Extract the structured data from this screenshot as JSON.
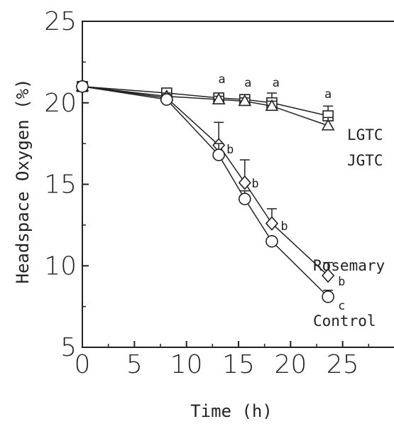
{
  "chart_data": {
    "type": "line",
    "title": "",
    "xlabel": "Time (h)",
    "ylabel": "Headspace Oxygen (%)",
    "xlim": [
      0,
      30
    ],
    "ylim": [
      5,
      25
    ],
    "xticks": [
      0,
      5,
      10,
      15,
      20,
      25
    ],
    "yticks": [
      5,
      10,
      15,
      20,
      25
    ],
    "grid": false,
    "series": [
      {
        "name": "LGTC",
        "marker": "square",
        "points": [
          {
            "x": 0,
            "y": 21.0,
            "err": 0.1
          },
          {
            "x": 8.1,
            "y": 20.6,
            "err": 0.2
          },
          {
            "x": 13.1,
            "y": 20.3,
            "err": 0.2
          },
          {
            "x": 15.6,
            "y": 20.2,
            "err": 0.2
          },
          {
            "x": 18.2,
            "y": 20.0,
            "err": 0.6
          },
          {
            "x": 23.6,
            "y": 19.2,
            "err": 0.6
          }
        ]
      },
      {
        "name": "JGTC",
        "marker": "triangle",
        "points": [
          {
            "x": 0,
            "y": 21.0,
            "err": 0.1
          },
          {
            "x": 8.1,
            "y": 20.4,
            "err": 0.2
          },
          {
            "x": 13.1,
            "y": 20.2,
            "err": 0.2
          },
          {
            "x": 15.6,
            "y": 20.1,
            "err": 0.2
          },
          {
            "x": 18.2,
            "y": 19.8,
            "err": 0.3
          },
          {
            "x": 23.6,
            "y": 18.6,
            "err": 0.5
          }
        ]
      },
      {
        "name": "Rosemary",
        "marker": "diamond",
        "points": [
          {
            "x": 0,
            "y": 21.0,
            "err": 0.1
          },
          {
            "x": 8.1,
            "y": 20.3,
            "err": 0.2
          },
          {
            "x": 13.1,
            "y": 17.4,
            "err": 1.4
          },
          {
            "x": 15.6,
            "y": 15.1,
            "err": 1.4
          },
          {
            "x": 18.2,
            "y": 12.6,
            "err": 0.9
          },
          {
            "x": 23.6,
            "y": 9.4,
            "err": 0.8
          }
        ]
      },
      {
        "name": "Control",
        "marker": "circle",
        "points": [
          {
            "x": 0,
            "y": 21.0,
            "err": 0.1
          },
          {
            "x": 8.1,
            "y": 20.2,
            "err": 0.2
          },
          {
            "x": 13.1,
            "y": 16.8,
            "err": 0.7
          },
          {
            "x": 15.6,
            "y": 14.1,
            "err": 0.5
          },
          {
            "x": 18.2,
            "y": 11.5,
            "err": 0.2
          },
          {
            "x": 23.6,
            "y": 8.1,
            "err": 0.4
          }
        ]
      }
    ],
    "annotations": [
      {
        "text": "a",
        "x": 13.4,
        "y": 21.2
      },
      {
        "text": "a",
        "x": 15.9,
        "y": 21.0
      },
      {
        "text": "a",
        "x": 18.6,
        "y": 21.0
      },
      {
        "text": "a",
        "x": 23.6,
        "y": 20.3
      },
      {
        "text": "b",
        "x": 14.2,
        "y": 16.9
      },
      {
        "text": "b",
        "x": 16.6,
        "y": 14.8
      },
      {
        "text": "b",
        "x": 19.4,
        "y": 12.2
      },
      {
        "text": "b",
        "x": 24.9,
        "y": 8.8
      },
      {
        "text": "c",
        "x": 24.9,
        "y": 7.3
      }
    ]
  }
}
